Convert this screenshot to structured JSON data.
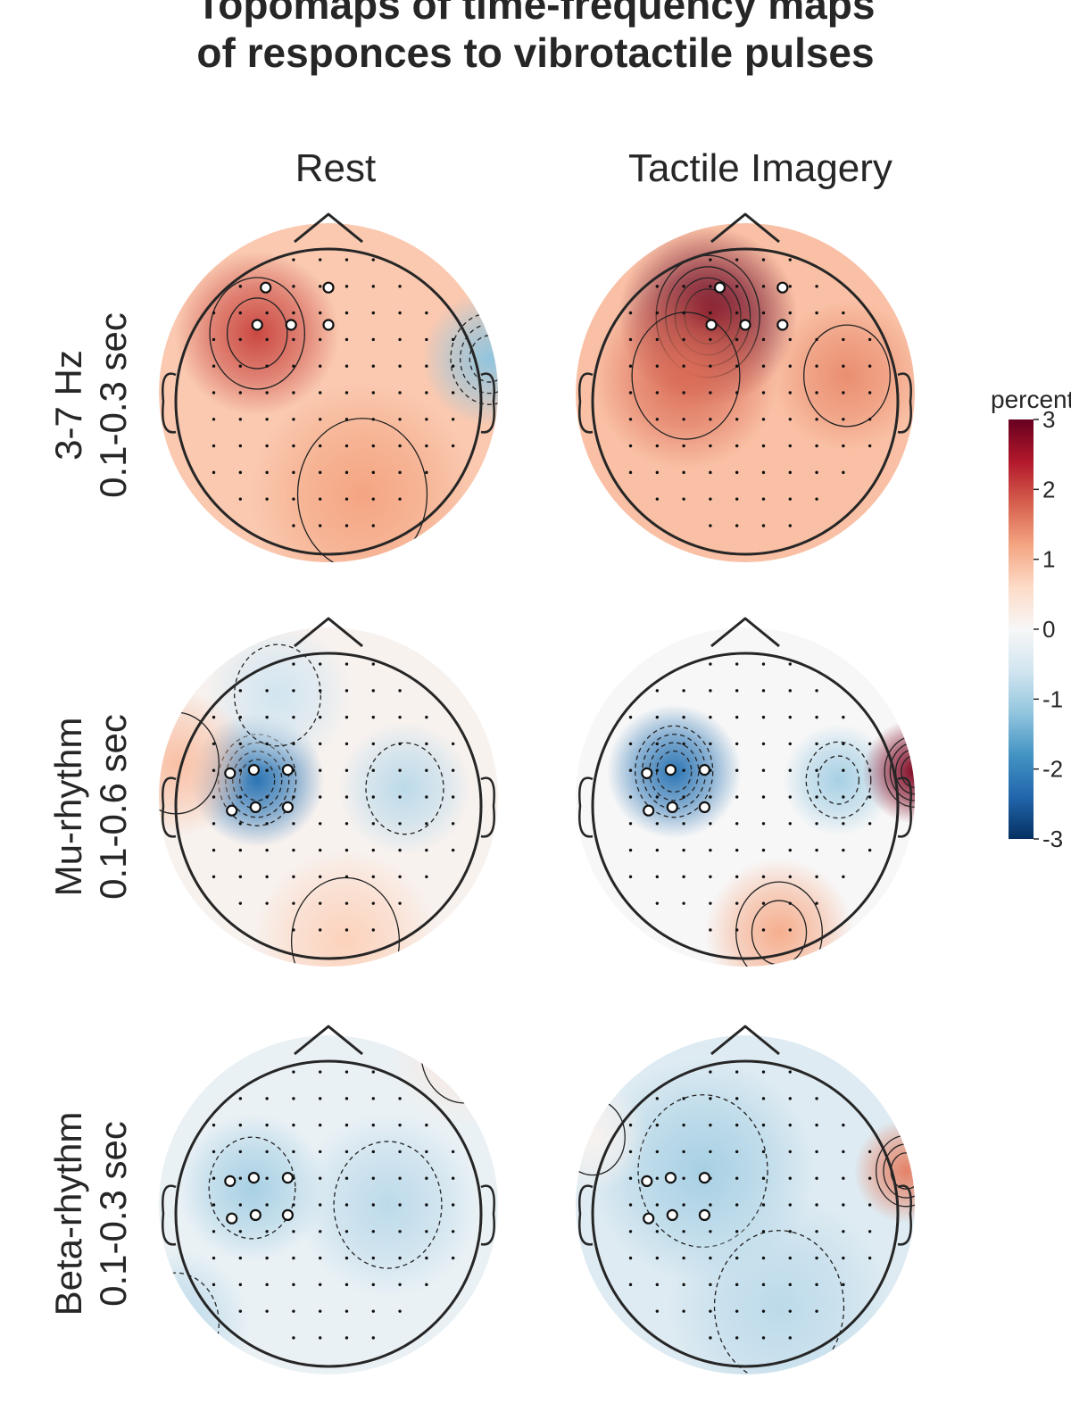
{
  "chart_data": {
    "type": "heatmap",
    "title_line1": "Topomaps of time-frequency maps",
    "title_line2": "of responces to vibrotactile pulses",
    "columns": [
      "Rest",
      "Tactile Imagery"
    ],
    "rows": [
      {
        "label_line1": "3-7 Hz",
        "label_line2": "0.1-0.3 sec"
      },
      {
        "label_line1": "Mu-rhythm",
        "label_line2": "0.1-0.6 sec"
      },
      {
        "label_line1": "Beta-rhythm",
        "label_line2": "0.1-0.3 sec"
      }
    ],
    "colorbar": {
      "label": "percent",
      "colormap": "RdBu_r",
      "range": [
        -3,
        3
      ],
      "ticks": [
        3,
        2,
        1,
        0,
        -1,
        -2,
        -3
      ]
    },
    "panels": [
      {
        "row": 0,
        "col": 0,
        "base": 0.8,
        "blobs": [
          {
            "x": -0.42,
            "y": 0.35,
            "v": 1.2,
            "s": 0.22
          },
          {
            "x": 0.95,
            "y": 0.2,
            "v": -2.0,
            "s": 0.18
          },
          {
            "x": 0.2,
            "y": -0.6,
            "v": 0.4,
            "s": 0.3
          }
        ]
      },
      {
        "row": 0,
        "col": 1,
        "base": 0.9,
        "blobs": [
          {
            "x": -0.22,
            "y": 0.45,
            "v": 2.6,
            "s": 0.24
          },
          {
            "x": -0.35,
            "y": 0.1,
            "v": 0.8,
            "s": 0.25
          },
          {
            "x": 0.6,
            "y": 0.1,
            "v": 0.5,
            "s": 0.2
          }
        ]
      },
      {
        "row": 1,
        "col": 0,
        "base": 0.1,
        "blobs": [
          {
            "x": -0.42,
            "y": 0.1,
            "v": -2.3,
            "s": 0.18
          },
          {
            "x": -0.3,
            "y": 0.6,
            "v": -0.7,
            "s": 0.2
          },
          {
            "x": 0.45,
            "y": 0.05,
            "v": -0.9,
            "s": 0.18
          },
          {
            "x": -0.9,
            "y": 0.2,
            "v": 0.8,
            "s": 0.2
          },
          {
            "x": 0.1,
            "y": -0.85,
            "v": 0.6,
            "s": 0.25
          }
        ]
      },
      {
        "row": 1,
        "col": 1,
        "base": 0.0,
        "blobs": [
          {
            "x": -0.42,
            "y": 0.15,
            "v": -2.2,
            "s": 0.18
          },
          {
            "x": 0.55,
            "y": 0.1,
            "v": -1.0,
            "s": 0.15
          },
          {
            "x": 1.0,
            "y": 0.15,
            "v": 2.8,
            "s": 0.14
          },
          {
            "x": 0.2,
            "y": -0.8,
            "v": 1.1,
            "s": 0.2
          }
        ]
      },
      {
        "row": 2,
        "col": 0,
        "base": -0.2,
        "blobs": [
          {
            "x": -0.45,
            "y": 0.1,
            "v": -0.8,
            "s": 0.2
          },
          {
            "x": 0.35,
            "y": 0.0,
            "v": -0.6,
            "s": 0.25
          },
          {
            "x": -0.9,
            "y": -0.7,
            "v": -0.6,
            "s": 0.2
          },
          {
            "x": 0.8,
            "y": 0.9,
            "v": 0.5,
            "s": 0.2
          }
        ]
      },
      {
        "row": 2,
        "col": 1,
        "base": -0.4,
        "blobs": [
          {
            "x": -0.25,
            "y": 0.2,
            "v": -0.6,
            "s": 0.3
          },
          {
            "x": 0.2,
            "y": -0.6,
            "v": -0.4,
            "s": 0.3
          },
          {
            "x": 0.95,
            "y": 0.2,
            "v": 1.9,
            "s": 0.14
          },
          {
            "x": -0.9,
            "y": 0.4,
            "v": 0.5,
            "s": 0.15
          }
        ]
      }
    ]
  }
}
